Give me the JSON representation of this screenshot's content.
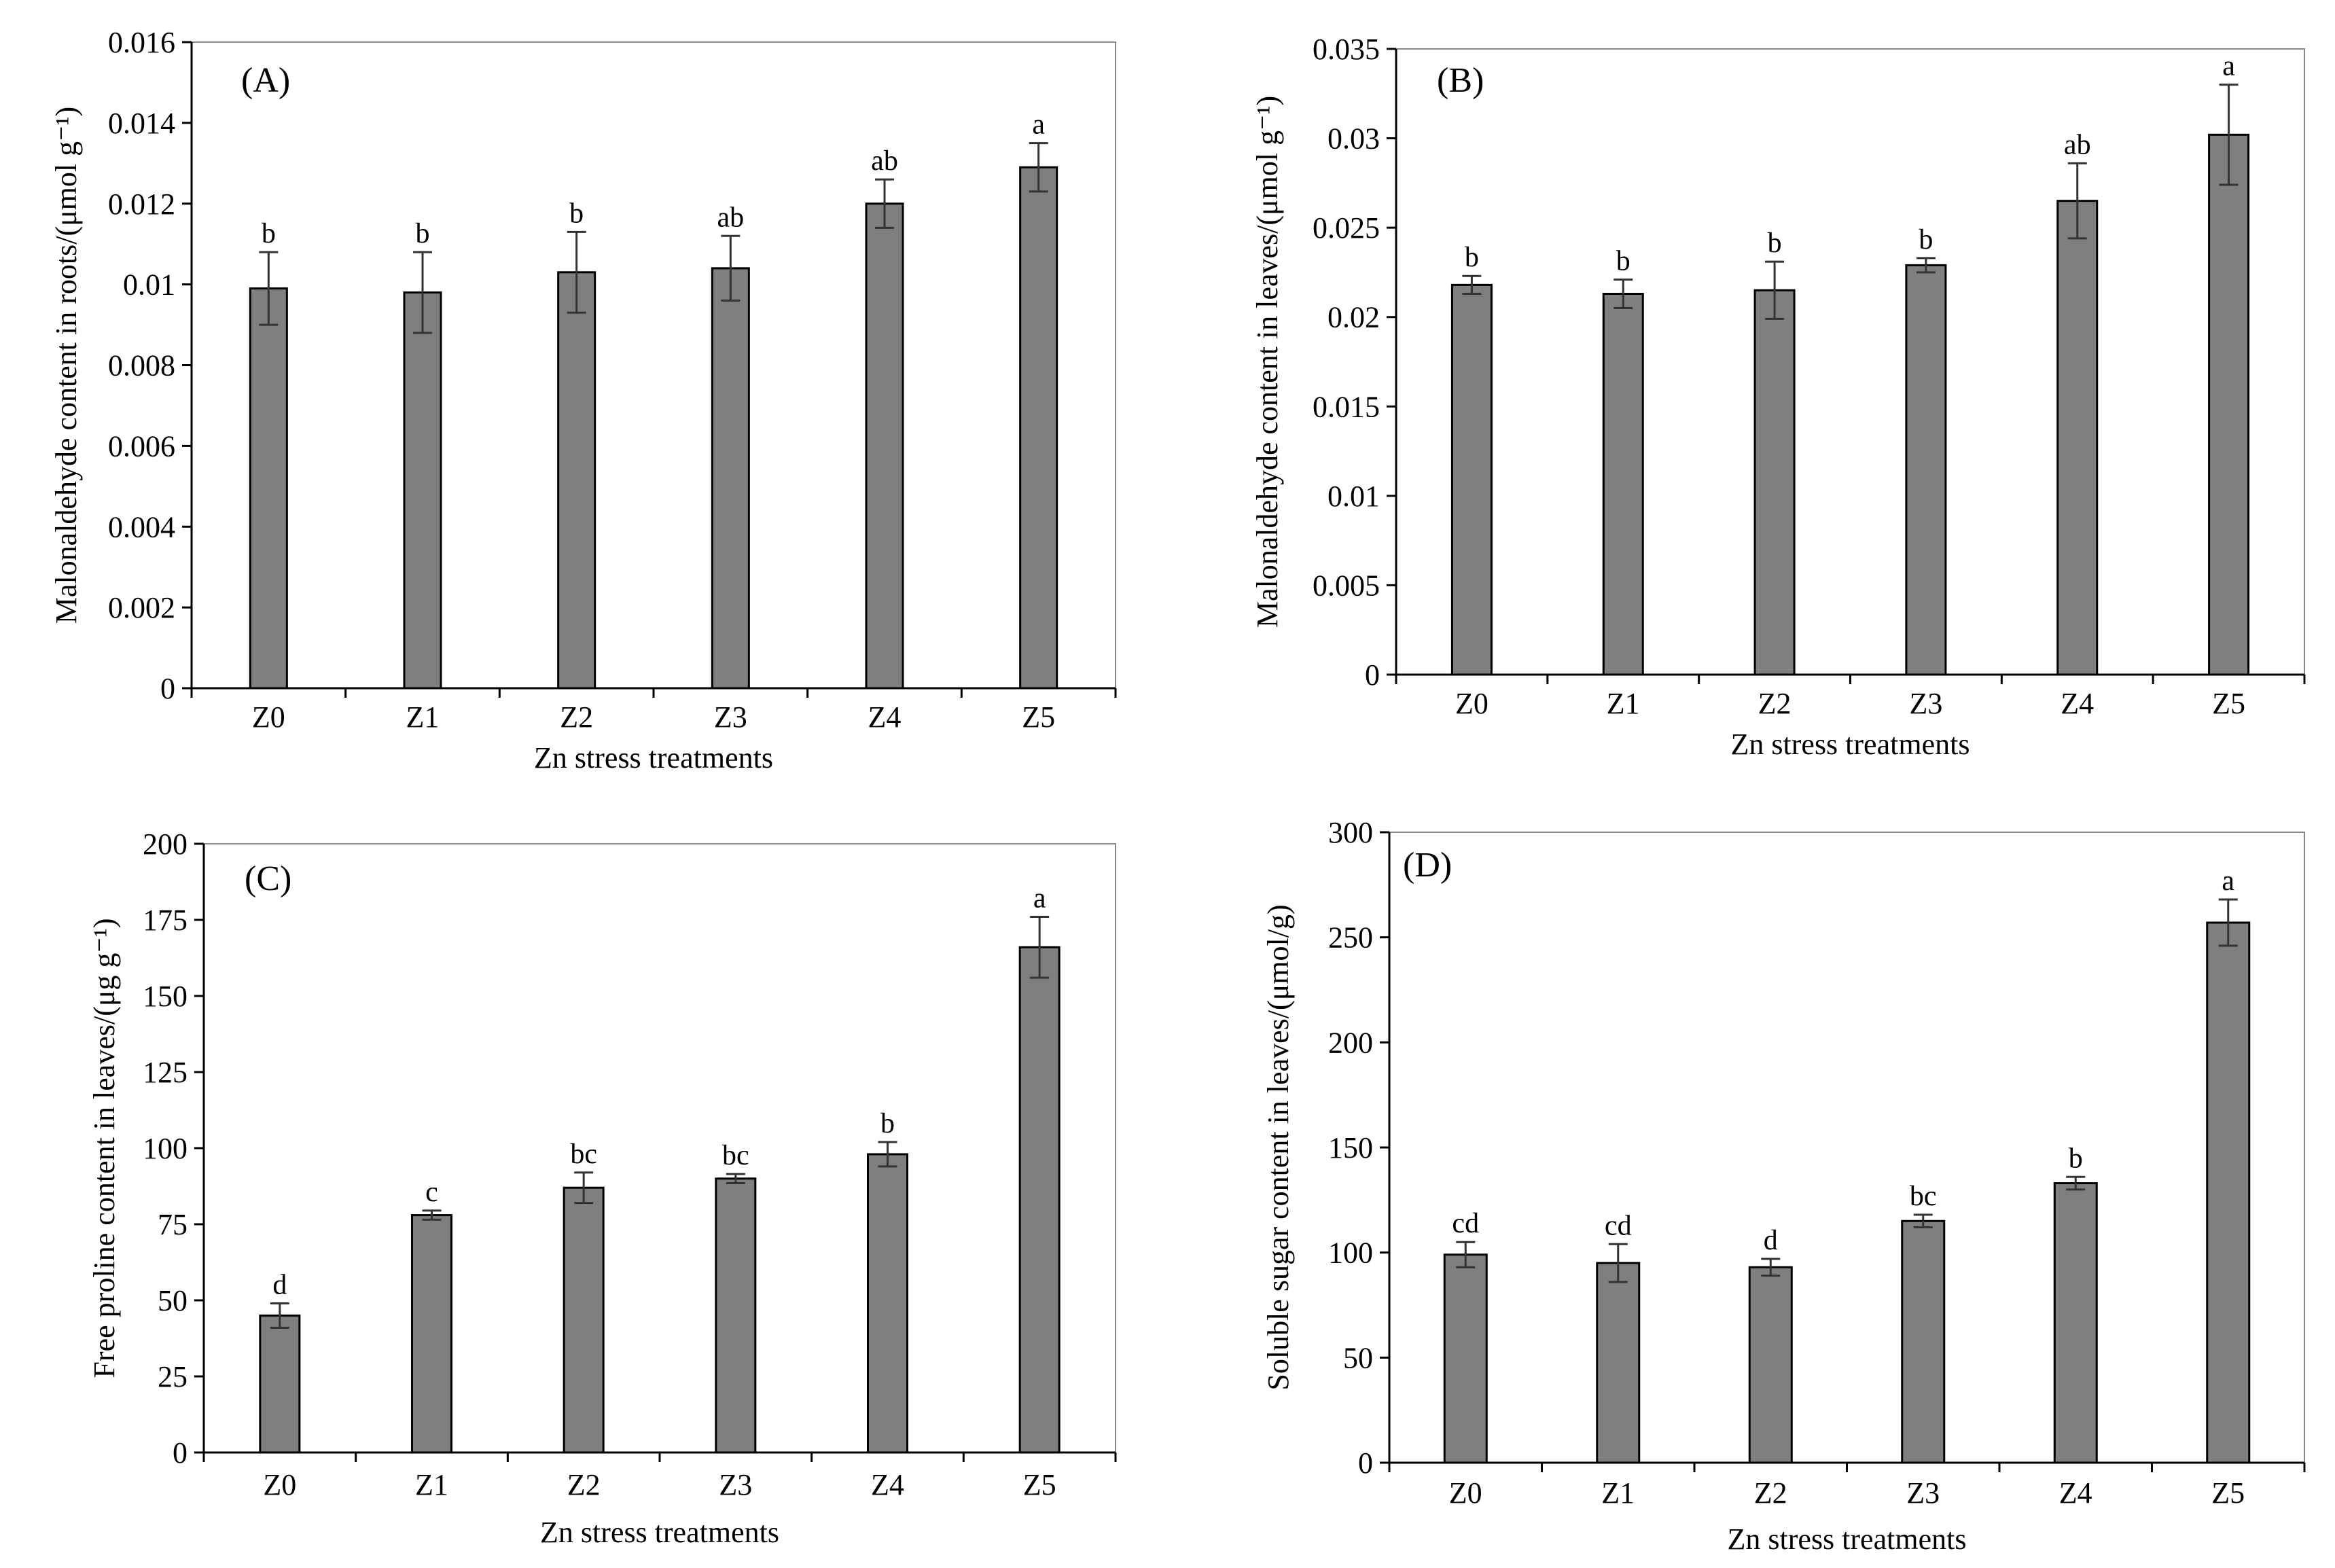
{
  "colors": {
    "bar_fill": "#7f7f7f",
    "bar_stroke": "#000000",
    "axis": "#000000",
    "frame": "#888888",
    "error_bar": "#333333"
  },
  "chart_data": [
    {
      "type": "bar",
      "panel_label": "(A)",
      "categories": [
        "Z0",
        "Z1",
        "Z2",
        "Z3",
        "Z4",
        "Z5"
      ],
      "values": [
        0.0099,
        0.0098,
        0.0103,
        0.0104,
        0.012,
        0.0129
      ],
      "errors": [
        0.0009,
        0.001,
        0.001,
        0.0008,
        0.0006,
        0.0006
      ],
      "significance": [
        "b",
        "b",
        "b",
        "ab",
        "ab",
        "a"
      ],
      "xlabel": "Zn stress treatments",
      "ylabel": "Malonaldehyde content in roots/(μmol g⁻¹)",
      "ylim": [
        0,
        0.016
      ],
      "yticks": [
        0,
        0.002,
        0.004,
        0.006,
        0.008,
        0.01,
        0.012,
        0.014,
        0.016
      ],
      "ytick_labels": [
        "0",
        "0.002",
        "0.004",
        "0.006",
        "0.008",
        "0.01",
        "0.012",
        "0.014",
        "0.016"
      ]
    },
    {
      "type": "bar",
      "panel_label": "(B)",
      "categories": [
        "Z0",
        "Z1",
        "Z2",
        "Z3",
        "Z4",
        "Z5"
      ],
      "values": [
        0.0218,
        0.0213,
        0.0215,
        0.0229,
        0.0265,
        0.0302
      ],
      "errors": [
        0.0005,
        0.0008,
        0.0016,
        0.0004,
        0.0021,
        0.0028
      ],
      "significance": [
        "b",
        "b",
        "b",
        "b",
        "ab",
        "a"
      ],
      "xlabel": "Zn stress treatments",
      "ylabel": "Malonaldehyde content in leaves/(μmol g⁻¹)",
      "ylim": [
        0,
        0.035
      ],
      "yticks": [
        0,
        0.005,
        0.01,
        0.015,
        0.02,
        0.025,
        0.03,
        0.035
      ],
      "ytick_labels": [
        "0",
        "0.005",
        "0.01",
        "0.015",
        "0.02",
        "0.025",
        "0.03",
        "0.035"
      ]
    },
    {
      "type": "bar",
      "panel_label": "(C)",
      "categories": [
        "Z0",
        "Z1",
        "Z2",
        "Z3",
        "Z4",
        "Z5"
      ],
      "values": [
        45,
        78,
        87,
        90,
        98,
        166
      ],
      "errors": [
        4,
        1.5,
        5,
        1.5,
        4,
        10
      ],
      "significance": [
        "d",
        "c",
        "bc",
        "bc",
        "b",
        "a"
      ],
      "xlabel": "Zn stress treatments",
      "ylabel": "Free proline content in leaves/(μg g⁻¹)",
      "ylim": [
        0,
        200
      ],
      "yticks": [
        0,
        25,
        50,
        75,
        100,
        125,
        150,
        175,
        200
      ],
      "ytick_labels": [
        "0",
        "25",
        "50",
        "75",
        "100",
        "125",
        "150",
        "175",
        "200"
      ]
    },
    {
      "type": "bar",
      "panel_label": "(D)",
      "categories": [
        "Z0",
        "Z1",
        "Z2",
        "Z3",
        "Z4",
        "Z5"
      ],
      "values": [
        99,
        95,
        93,
        115,
        133,
        257
      ],
      "errors": [
        6,
        9,
        4,
        3,
        3,
        11
      ],
      "significance": [
        "cd",
        "cd",
        "d",
        "bc",
        "b",
        "a"
      ],
      "xlabel": "Zn  stress  treatments",
      "ylabel": "Soluble  sugar  content  in  leaves/(μmol/g)",
      "ylim": [
        0,
        300
      ],
      "yticks": [
        0,
        50,
        100,
        150,
        200,
        250,
        300
      ],
      "ytick_labels": [
        "0",
        "50",
        "100",
        "150",
        "200",
        "250",
        "300"
      ]
    }
  ]
}
